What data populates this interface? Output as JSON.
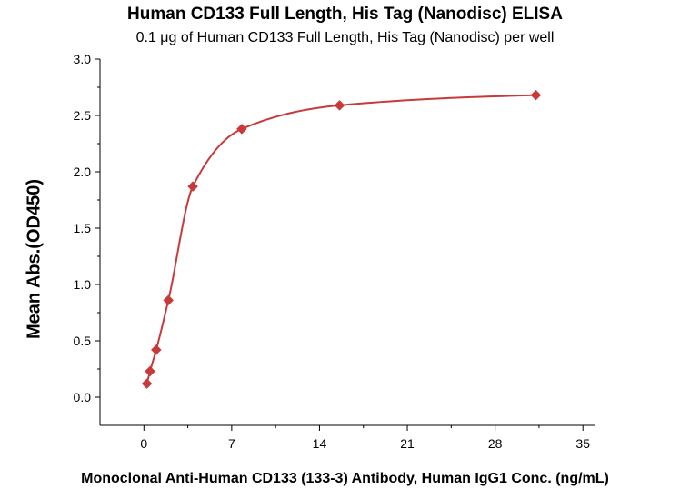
{
  "chart_data": {
    "type": "scatter",
    "title": "Human CD133 Full Length, His Tag (Nanodisc) ELISA",
    "subtitle": "0.1 μg of Human CD133 Full Length, His Tag (Nanodisc) per well",
    "xlabel": "Monoclonal Anti-Human CD133 (133-3) Antibody, Human IgG1 Conc. (ng/mL)",
    "ylabel": "Mean Abs.(OD450)",
    "xlim": [
      -3.5,
      36
    ],
    "ylim": [
      -0.25,
      3.0
    ],
    "x_ticks": [
      0,
      7,
      14,
      21,
      28,
      35
    ],
    "x_tick_labels": [
      "0",
      "7",
      "14",
      "21",
      "28",
      "35"
    ],
    "y_ticks": [
      0.0,
      0.5,
      1.0,
      1.5,
      2.0,
      2.5,
      3.0
    ],
    "y_tick_labels": [
      "0.0",
      "0.5",
      "1.0",
      "1.5",
      "2.0",
      "2.5",
      "3.0"
    ],
    "grid": false,
    "color": "#c8393a",
    "series": [
      {
        "marker": "diamond",
        "x": [
          0.24,
          0.49,
          0.98,
          1.95,
          3.9,
          7.8,
          15.6,
          31.25
        ],
        "y": [
          0.12,
          0.23,
          0.42,
          0.86,
          1.87,
          2.38,
          2.59,
          2.68
        ]
      }
    ],
    "fit_curve": true
  }
}
